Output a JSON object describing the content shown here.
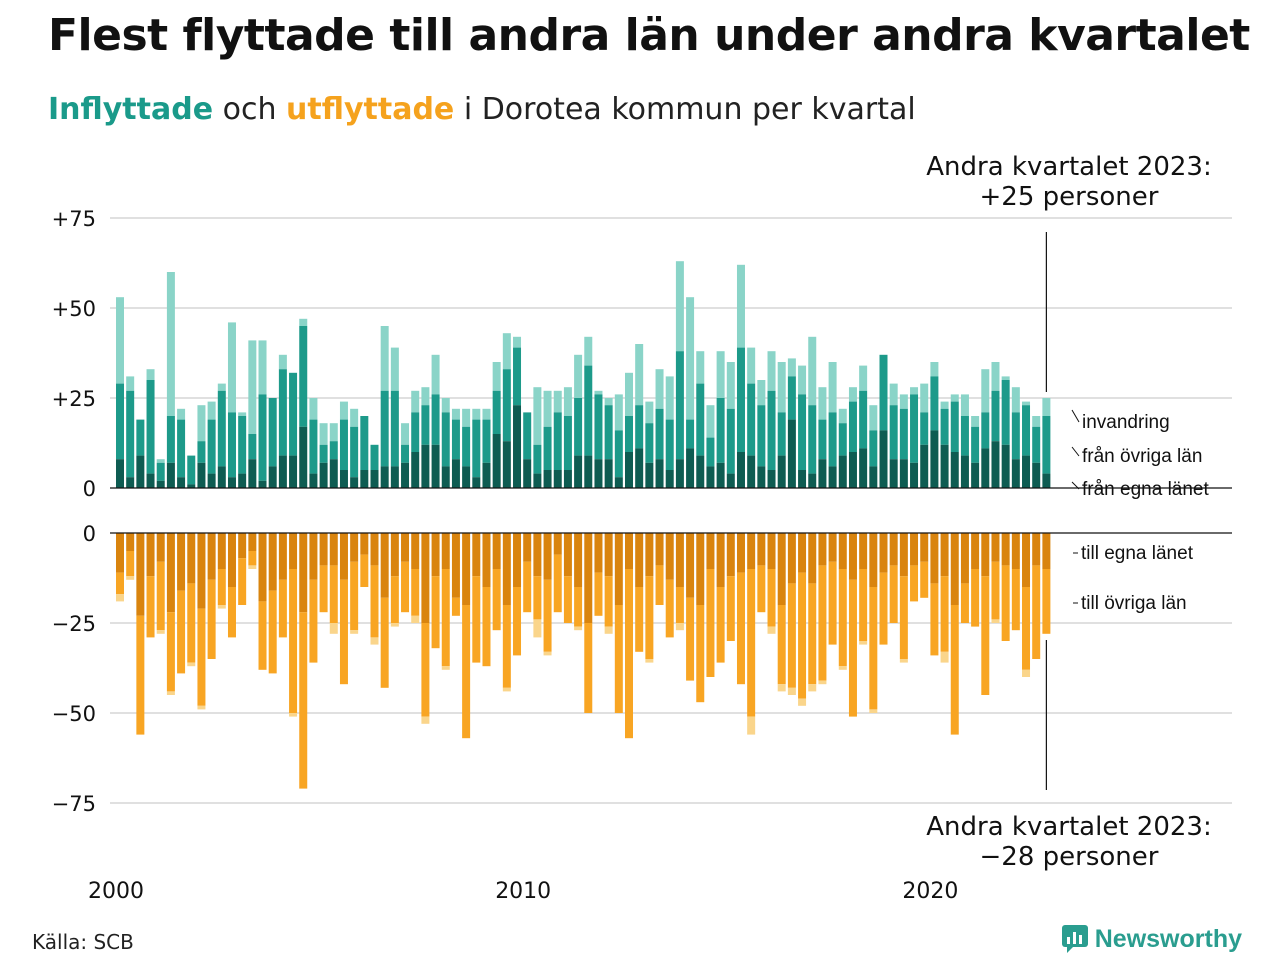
{
  "title": "Flest flyttade till andra län under andra kvartalet",
  "subtitle": {
    "in_word": "Inflyttade",
    "and_word": "och",
    "out_word": "utflyttade",
    "rest": "i Dorotea  kommun  per  kvartal"
  },
  "annotation_top": [
    "Andra kvartalet 2023:",
    "+25 personer"
  ],
  "annotation_bottom": [
    "Andra kvartalet 2023:",
    "−28 personer"
  ],
  "source": "Källa: SCB",
  "brand": "Newsworthy",
  "colors": {
    "in_own": "#0e5c52",
    "in_other": "#1d9a8a",
    "in_immig": "#8ad4c8",
    "out_own": "#d9840e",
    "out_other": "#f8a523",
    "out_emig": "#fad58b",
    "grid": "#e0e0e0"
  },
  "chart_data": [
    {
      "type": "bar",
      "stacked": true,
      "ylim": [
        0,
        75
      ],
      "yticks": [
        "0",
        "+25",
        "+50",
        "+75"
      ],
      "legend": [
        "invandring",
        "från övriga län",
        "från egna länet"
      ],
      "series_keys": [
        "from_own_county",
        "from_other_counties",
        "immigration"
      ],
      "start_quarter": "2000Q1",
      "totals": [
        53,
        31,
        19,
        33,
        8,
        60,
        22,
        9,
        23,
        24,
        29,
        46,
        21,
        41,
        41,
        25,
        37,
        32,
        47,
        25,
        18,
        18,
        24,
        22,
        20,
        12,
        45,
        39,
        18,
        27,
        28,
        37,
        25,
        22,
        22,
        22,
        22,
        35,
        43,
        42,
        21,
        28,
        27,
        27,
        28,
        37,
        42,
        27,
        25,
        26,
        32,
        40,
        24,
        33,
        31,
        63,
        53,
        38,
        23,
        38,
        35,
        62,
        39,
        30,
        38,
        35,
        36,
        34,
        42,
        28,
        35,
        22,
        28,
        34,
        23,
        37,
        29,
        26,
        28,
        29,
        35,
        24,
        26,
        26,
        20,
        33,
        35,
        31,
        28,
        24,
        20,
        25
      ],
      "in_total": [
        29,
        27,
        19,
        30,
        7,
        20,
        19,
        9,
        13,
        19,
        27,
        21,
        20,
        15,
        26,
        25,
        33,
        32,
        45,
        19,
        12,
        13,
        19,
        17,
        20,
        12,
        27,
        27,
        12,
        21,
        23,
        26,
        21,
        19,
        17,
        19,
        19,
        27,
        33,
        39,
        21,
        12,
        17,
        21,
        20,
        25,
        34,
        26,
        23,
        16,
        20,
        23,
        18,
        22,
        19,
        38,
        19,
        29,
        14,
        25,
        22,
        39,
        29,
        23,
        27,
        21,
        31,
        26,
        23,
        19,
        21,
        18,
        24,
        27,
        16,
        37,
        23,
        22,
        26,
        21,
        31,
        22,
        24,
        20,
        17,
        21,
        27,
        30,
        21,
        23,
        17,
        20
      ],
      "from_own_county": [
        8,
        3,
        9,
        4,
        2,
        7,
        3,
        1,
        7,
        4,
        6,
        3,
        4,
        8,
        2,
        6,
        9,
        9,
        17,
        4,
        7,
        8,
        5,
        3,
        5,
        5,
        6,
        6,
        7,
        10,
        12,
        12,
        6,
        8,
        6,
        3,
        7,
        15,
        13,
        23,
        8,
        4,
        5,
        5,
        5,
        9,
        9,
        8,
        8,
        3,
        10,
        11,
        7,
        8,
        5,
        8,
        11,
        9,
        6,
        7,
        4,
        10,
        9,
        6,
        5,
        9,
        19,
        5,
        4,
        8,
        6,
        9,
        10,
        11,
        6,
        16,
        8,
        8,
        7,
        12,
        16,
        12,
        10,
        9,
        7,
        11,
        13,
        12,
        8,
        9,
        7,
        4
      ]
    },
    {
      "type": "bar",
      "stacked": true,
      "ylim": [
        -75,
        0
      ],
      "yticks": [
        "0",
        "−25",
        "−50",
        "−75"
      ],
      "legend": [
        "till egna länet",
        "till övriga län"
      ],
      "series_keys": [
        "to_own_county",
        "to_other_counties",
        "emigration"
      ],
      "start_quarter": "2000Q1",
      "totals": [
        -19,
        -13,
        -56,
        -29,
        -28,
        -45,
        -39,
        -37,
        -49,
        -35,
        -21,
        -29,
        -20,
        -10,
        -38,
        -39,
        -29,
        -51,
        -71,
        -36,
        -22,
        -28,
        -42,
        -28,
        -15,
        -31,
        -43,
        -26,
        -22,
        -25,
        -53,
        -32,
        -38,
        -23,
        -57,
        -36,
        -37,
        -27,
        -44,
        -34,
        -22,
        -29,
        -34,
        -22,
        -25,
        -27,
        -50,
        -23,
        -28,
        -50,
        -57,
        -33,
        -36,
        -20,
        -29,
        -27,
        -41,
        -47,
        -40,
        -36,
        -30,
        -42,
        -56,
        -22,
        -28,
        -44,
        -45,
        -48,
        -44,
        -42,
        -31,
        -38,
        -51,
        -31,
        -50,
        -31,
        -25,
        -36,
        -19,
        -18,
        -34,
        -36,
        -56,
        -25,
        -26,
        -45,
        -25,
        -30,
        -27,
        -40,
        -35,
        -28
      ],
      "out_total": [
        -17,
        -12,
        -56,
        -29,
        -27,
        -44,
        -39,
        -36,
        -48,
        -35,
        -20,
        -29,
        -20,
        -9,
        -38,
        -39,
        -29,
        -50,
        -71,
        -36,
        -22,
        -25,
        -42,
        -27,
        -15,
        -29,
        -43,
        -25,
        -22,
        -23,
        -51,
        -32,
        -37,
        -23,
        -57,
        -36,
        -37,
        -27,
        -43,
        -34,
        -22,
        -24,
        -33,
        -22,
        -25,
        -26,
        -50,
        -23,
        -26,
        -50,
        -57,
        -33,
        -35,
        -20,
        -29,
        -25,
        -41,
        -47,
        -40,
        -36,
        -30,
        -42,
        -51,
        -22,
        -26,
        -42,
        -43,
        -46,
        -42,
        -41,
        -31,
        -37,
        -51,
        -30,
        -49,
        -31,
        -25,
        -35,
        -19,
        -18,
        -34,
        -33,
        -56,
        -25,
        -26,
        -45,
        -24,
        -30,
        -27,
        -38,
        -35,
        -28
      ],
      "to_own_county": [
        -11,
        -5,
        -23,
        -12,
        -8,
        -22,
        -16,
        -14,
        -21,
        -13,
        -10,
        -15,
        -7,
        -5,
        -19,
        -16,
        -13,
        -10,
        -22,
        -13,
        -9,
        -9,
        -13,
        -8,
        -6,
        -9,
        -18,
        -12,
        -8,
        -10,
        -25,
        -12,
        -10,
        -18,
        -20,
        -12,
        -15,
        -10,
        -20,
        -15,
        -8,
        -12,
        -13,
        -6,
        -12,
        -15,
        -25,
        -11,
        -12,
        -20,
        -10,
        -15,
        -12,
        -9,
        -13,
        -15,
        -18,
        -20,
        -10,
        -15,
        -12,
        -11,
        -10,
        -9,
        -10,
        -20,
        -14,
        -11,
        -14,
        -9,
        -8,
        -10,
        -13,
        -10,
        -15,
        -11,
        -9,
        -12,
        -9,
        -8,
        -14,
        -12,
        -20,
        -14,
        -10,
        -12,
        -8,
        -9,
        -10,
        -15,
        -9,
        -10
      ]
    }
  ],
  "x_axis": {
    "ticks": [
      "2000",
      "2010",
      "2020"
    ]
  }
}
